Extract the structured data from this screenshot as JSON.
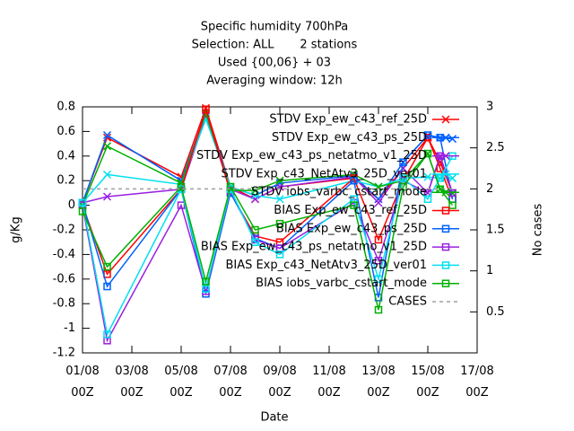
{
  "chart_data": {
    "type": "line",
    "title": [
      "Specific humidity 700hPa",
      "Selection: ALL       2 stations",
      "Used {00,06} + 03",
      "Averaging window: 12h"
    ],
    "x_label": "Date",
    "y_label": "g/Kg",
    "y2_label": "No cases",
    "x": [
      0,
      1,
      4,
      5,
      6,
      7,
      8,
      11,
      12,
      13,
      14,
      14.5,
      15
    ],
    "xlim": [
      0,
      16
    ],
    "xticks": [
      {
        "value": 0,
        "label": "01/08 00Z"
      },
      {
        "value": 2,
        "label": "03/08 00Z"
      },
      {
        "value": 4,
        "label": "05/08 00Z"
      },
      {
        "value": 6,
        "label": "07/08 00Z"
      },
      {
        "value": 8,
        "label": "09/08 00Z"
      },
      {
        "value": 10,
        "label": "11/08 00Z"
      },
      {
        "value": 12,
        "label": "13/08 00Z"
      },
      {
        "value": 14,
        "label": "15/08 00Z"
      },
      {
        "value": 16,
        "label": "17/08 00Z"
      }
    ],
    "ylim": [
      -1.2,
      0.8
    ],
    "yticks": [
      -1.2,
      -1,
      -0.8,
      -0.6,
      -0.4,
      -0.2,
      0,
      0.2,
      0.4,
      0.6,
      0.8
    ],
    "y2lim": [
      0,
      3
    ],
    "y2ticks": [
      0.5,
      1,
      1.5,
      2,
      2.5,
      3
    ],
    "legend": "top-right",
    "series": [
      {
        "name": "STDV Exp_ew_c43_ref_25D",
        "color": "#ff0000",
        "marker": "cross",
        "values": [
          0.02,
          0.55,
          0.23,
          0.79,
          0.15,
          0.05,
          0.15,
          0.22,
          0.05,
          0.3,
          0.55,
          0.35,
          0.1
        ]
      },
      {
        "name": "STDV Exp_ew_c43_ps_25D",
        "color": "#0060ff",
        "marker": "cross",
        "values": [
          0.02,
          0.57,
          0.2,
          0.75,
          0.15,
          0.08,
          0.18,
          0.24,
          0.05,
          0.35,
          0.57,
          0.55,
          0.54
        ]
      },
      {
        "name": "STDV Exp_ew_c43_ps_netatmo_v1_25D",
        "color": "#9a20e0",
        "marker": "cross",
        "values": [
          0.02,
          0.07,
          0.13,
          0.72,
          0.13,
          0.05,
          0.15,
          0.23,
          0.02,
          0.3,
          0.1,
          0.4,
          0.1
        ]
      },
      {
        "name": "STDV Exp_c43_NetAtv3_25D_ver01",
        "color": "#00e0f0",
        "marker": "cross",
        "values": [
          0.02,
          0.25,
          0.17,
          0.7,
          0.15,
          0.08,
          0.05,
          0.2,
          0.15,
          0.22,
          0.23,
          0.22,
          0.22
        ]
      },
      {
        "name": "STDV iobs_varbc_cstart_mode",
        "color": "#00b000",
        "marker": "cross",
        "values": [
          0.0,
          0.48,
          0.18,
          0.75,
          0.12,
          0.12,
          0.2,
          0.25,
          0.15,
          0.2,
          0.42,
          0.13,
          0.1
        ]
      },
      {
        "name": "BIAS Exp_ew_c43_ref_25D",
        "color": "#ff0000",
        "marker": "square",
        "values": [
          0.0,
          -0.56,
          0.13,
          0.78,
          0.1,
          -0.25,
          -0.3,
          0.22,
          -0.28,
          0.2,
          0.55,
          0.3,
          0.05
        ]
      },
      {
        "name": "BIAS Exp_ew_c43_ps_25D",
        "color": "#0060ff",
        "marker": "square",
        "values": [
          0.02,
          -0.66,
          0.13,
          -0.72,
          0.1,
          -0.27,
          -0.35,
          0.2,
          -0.75,
          0.35,
          0.57,
          0.55,
          0.05
        ]
      },
      {
        "name": "BIAS Exp_ew_c43_ps_netatmo_v1_25D",
        "color": "#9a20e0",
        "marker": "square",
        "values": [
          0.0,
          -1.1,
          0.0,
          -0.7,
          0.12,
          -0.28,
          -0.35,
          0.02,
          -0.45,
          0.2,
          0.1,
          0.4,
          0.1
        ]
      },
      {
        "name": "BIAS Exp_c43_NetAtv3_25D_ver01",
        "color": "#00e0f0",
        "marker": "square",
        "values": [
          0.02,
          -1.05,
          0.13,
          -0.68,
          0.13,
          -0.3,
          -0.4,
          0.05,
          -0.6,
          0.22,
          0.05,
          0.22,
          0.4
        ]
      },
      {
        "name": "BIAS iobs_varbc_cstart_mode",
        "color": "#00b000",
        "marker": "square",
        "values": [
          -0.05,
          -0.5,
          0.15,
          -0.62,
          0.15,
          -0.2,
          -0.15,
          0.0,
          -0.85,
          0.15,
          0.42,
          0.13,
          0.0
        ]
      },
      {
        "name": "CASES",
        "color": "#a0a0a0",
        "marker": "none",
        "dashed": true,
        "axis": "y2",
        "values": [
          2,
          2,
          2,
          2,
          2,
          2,
          2,
          2,
          2,
          2,
          2,
          2,
          2
        ]
      }
    ]
  }
}
